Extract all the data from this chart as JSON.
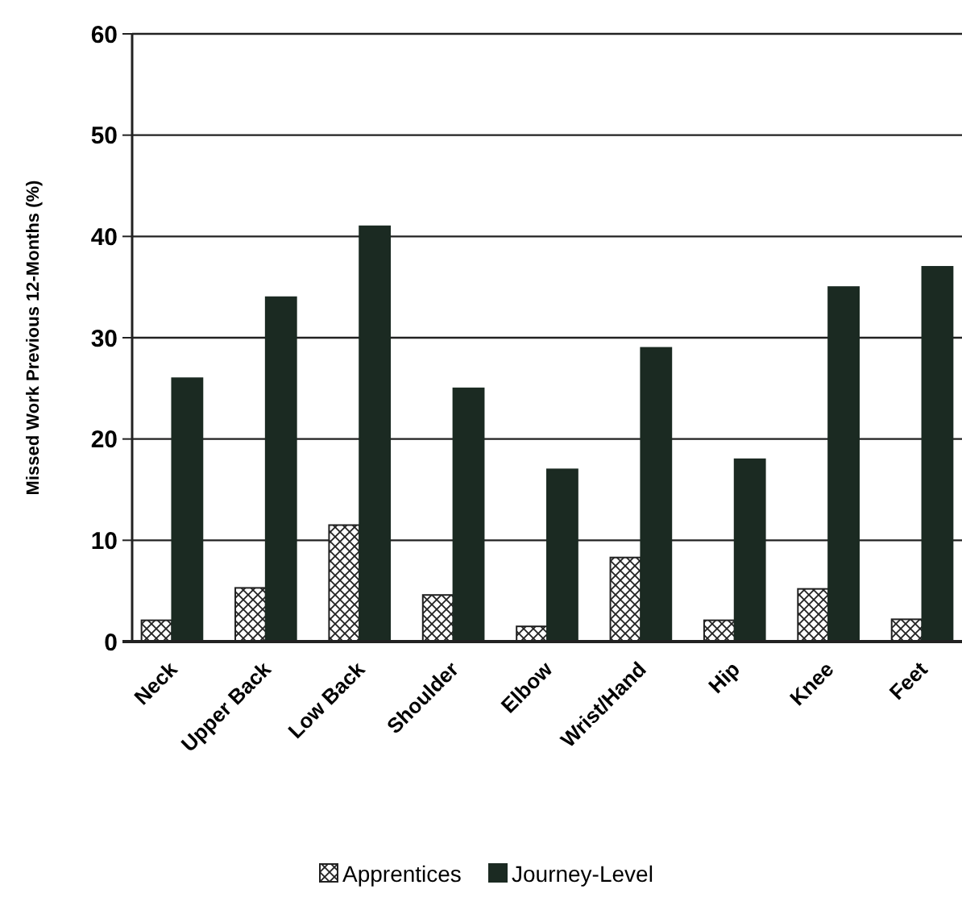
{
  "chart_data": {
    "type": "bar",
    "ylabel": "Missed Work Previous 12-Months (%)",
    "categories": [
      "Neck",
      "Upper Back",
      "Low Back",
      "Shoulder",
      "Elbow",
      "Wrist/Hand",
      "Hip",
      "Knee",
      "Feet"
    ],
    "series": [
      {
        "name": "Apprentices",
        "color": "#222222",
        "values": [
          2.1,
          5.3,
          11.5,
          4.6,
          1.5,
          8.3,
          2.1,
          5.2,
          2.2
        ]
      },
      {
        "name": "Journey-Level",
        "color": "#1b2a22",
        "values": [
          26,
          34,
          41,
          25,
          17,
          29,
          18,
          35,
          37
        ]
      }
    ],
    "ylim": [
      0,
      60
    ],
    "yticks": [
      0,
      10,
      20,
      30,
      40,
      50,
      60
    ],
    "grid": "y",
    "legend": "bottom"
  }
}
